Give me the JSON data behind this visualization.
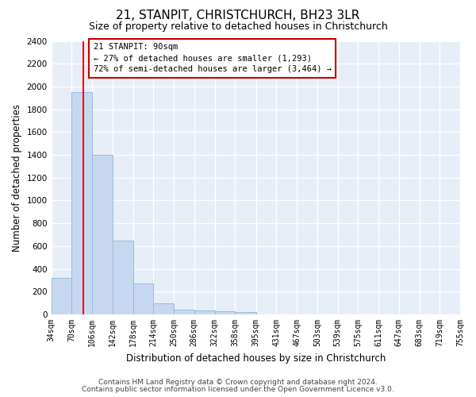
{
  "title": "21, STANPIT, CHRISTCHURCH, BH23 3LR",
  "subtitle": "Size of property relative to detached houses in Christchurch",
  "xlabel": "Distribution of detached houses by size in Christchurch",
  "ylabel": "Number of detached properties",
  "bin_edges": [
    34,
    70,
    106,
    142,
    178,
    214,
    250,
    286,
    322,
    358,
    395,
    431,
    467,
    503,
    539,
    575,
    611,
    647,
    683,
    719,
    755
  ],
  "bar_heights": [
    320,
    1950,
    1400,
    650,
    270,
    100,
    45,
    35,
    25,
    20,
    0,
    0,
    0,
    0,
    0,
    0,
    0,
    0,
    0,
    0
  ],
  "bar_color": "#c6d9f0",
  "bar_edgecolor": "#9abcd8",
  "red_line_x": 90,
  "annotation_line1": "21 STANPIT: 90sqm",
  "annotation_line2": "← 27% of detached houses are smaller (1,293)",
  "annotation_line3": "72% of semi-detached houses are larger (3,464) →",
  "annotation_box_facecolor": "#ffffff",
  "annotation_box_edgecolor": "#cc0000",
  "ylim_max": 2400,
  "yticks": [
    0,
    200,
    400,
    600,
    800,
    1000,
    1200,
    1400,
    1600,
    1800,
    2000,
    2200,
    2400
  ],
  "footer1": "Contains HM Land Registry data © Crown copyright and database right 2024.",
  "footer2": "Contains public sector information licensed under the Open Government Licence v3.0.",
  "plot_bg_color": "#e8eef7",
  "fig_bg_color": "#ffffff",
  "grid_color": "#ffffff",
  "title_fontsize": 11,
  "subtitle_fontsize": 9,
  "ylabel_fontsize": 8.5,
  "xlabel_fontsize": 8.5,
  "tick_fontsize": 7,
  "footer_fontsize": 6.5
}
